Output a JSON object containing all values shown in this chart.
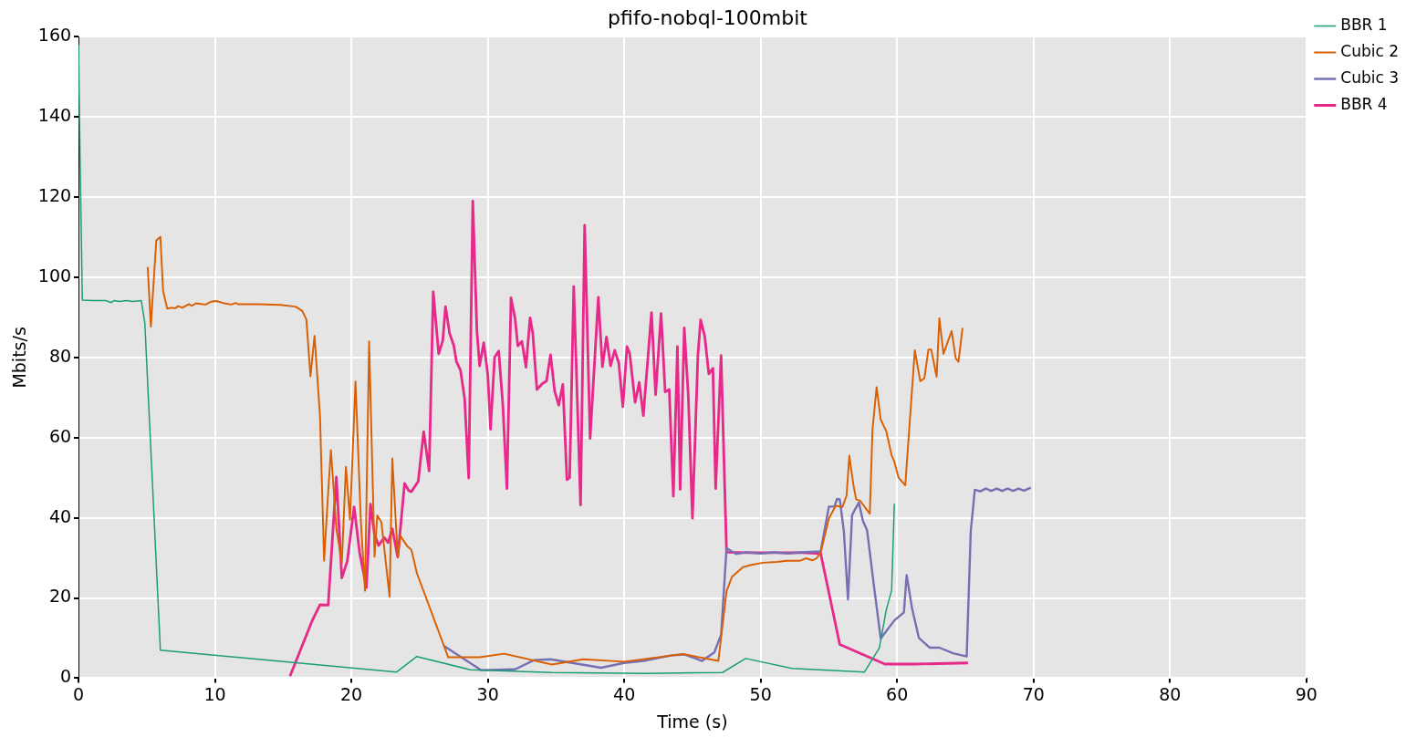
{
  "chart_data": {
    "type": "line",
    "title": "pfifo-nobql-100mbit",
    "xlabel": "Time (s)",
    "ylabel": "Mbits/s",
    "xlim": [
      0,
      90
    ],
    "ylim": [
      0,
      160
    ],
    "xticks": [
      0,
      10,
      20,
      30,
      40,
      50,
      60,
      70,
      80,
      90
    ],
    "yticks": [
      0,
      20,
      40,
      60,
      80,
      100,
      120,
      140,
      160
    ],
    "grid": true,
    "legend": "top right",
    "series": [
      {
        "name": "BBR 1",
        "color": "#1b9e77",
        "x": [
          0,
          0.09,
          0.28,
          1,
          2,
          2.4,
          2.6,
          3,
          3.5,
          4,
          4.6,
          4.86,
          6.0,
          23.3,
          24.8,
          28.7,
          34.7,
          41.6,
          47.2,
          48.9,
          52.3,
          57.6,
          58.7,
          59.2,
          59.6,
          59.8
        ],
        "values": [
          158,
          135,
          94.3,
          94.2,
          94.2,
          93.7,
          94.2,
          94,
          94.2,
          94,
          94.2,
          88.6,
          7,
          1.5,
          5.4,
          2.1,
          1.4,
          1.2,
          1.4,
          4.9,
          2.4,
          1.5,
          7.5,
          16.9,
          21.9,
          43.5
        ]
      },
      {
        "name": "Cubic 2",
        "color": "#d95f02",
        "x": [
          5.07,
          5.3,
          5.7,
          6.0,
          6.2,
          6.5,
          6.8,
          7.1,
          7.3,
          7.6,
          8.1,
          8.3,
          8.6,
          9.3,
          9.7,
          10.1,
          10.7,
          11.2,
          11.5,
          11.7,
          13.2,
          14.8,
          15.9,
          16.4,
          16.7,
          17.0,
          17.3,
          17.7,
          18.0,
          18.3,
          18.5,
          18.9,
          19.3,
          19.6,
          19.9,
          20.3,
          20.7,
          21.0,
          21.3,
          21.7,
          21.9,
          22.2,
          22.8,
          23.0,
          23.4,
          23.6,
          24.1,
          24.4,
          24.8,
          27.1,
          29.4,
          31.2,
          34.7,
          37.0,
          40.0,
          44.3,
          46.9,
          47.5,
          47.9,
          48.7,
          49.4,
          50.2,
          51.2,
          51.9,
          52.9,
          53.3,
          53.8,
          54.1,
          54.4,
          55.0,
          55.5,
          56.0,
          56.3,
          56.5,
          56.8,
          57.0,
          57.3,
          58.0,
          58.2,
          58.5,
          58.8,
          59.2,
          59.6,
          59.8,
          60.1,
          60.6,
          61.3,
          61.7,
          62.0,
          62.3,
          62.5,
          62.9,
          63.1,
          63.4,
          64.0,
          64.3,
          64.5,
          64.8
        ],
        "values": [
          102.6,
          87.7,
          109.2,
          110.1,
          96.6,
          92.2,
          92.4,
          92.3,
          92.8,
          92.4,
          93.3,
          92.9,
          93.5,
          93.2,
          93.9,
          94.1,
          93.5,
          93.2,
          93.6,
          93.3,
          93.3,
          93.1,
          92.7,
          91.6,
          89.5,
          75.3,
          85.4,
          65.4,
          29.3,
          46.5,
          56.9,
          37.3,
          28.8,
          52.7,
          39.5,
          74.0,
          38.8,
          21.8,
          84.0,
          30.3,
          40.6,
          38.9,
          20.3,
          54.8,
          30.2,
          35.5,
          32.9,
          32.0,
          26.2,
          5.2,
          5.2,
          6.1,
          3.4,
          4.7,
          4.1,
          6.0,
          4.3,
          21.7,
          25.3,
          27.7,
          28.3,
          28.8,
          29.0,
          29.3,
          29.3,
          29.9,
          29.4,
          29.9,
          31.3,
          39.8,
          43.0,
          42.7,
          45.6,
          55.5,
          48.2,
          44.6,
          44.2,
          41.0,
          62.1,
          72.6,
          64.5,
          61.7,
          55.6,
          54.0,
          50.1,
          48.1,
          81.8,
          74.1,
          74.8,
          82.0,
          82.0,
          75.2,
          89.8,
          80.9,
          86.6,
          79.8,
          78.9,
          87.4
        ]
      },
      {
        "name": "Cubic 3",
        "color": "#7570b3",
        "x": [
          26.8,
          29.5,
          32.0,
          33.4,
          34.6,
          38.3,
          40.0,
          41.4,
          43.5,
          44.4,
          45.7,
          46.6,
          47.1,
          47.5,
          48.2,
          49.0,
          50.0,
          51.0,
          52.0,
          53.0,
          54.4,
          55.0,
          55.4,
          55.6,
          55.8,
          56.1,
          56.4,
          56.7,
          56.9,
          57.2,
          57.5,
          57.8,
          58.3,
          58.8,
          59.8,
          60.5,
          60.7,
          61.1,
          61.6,
          62.4,
          63.1,
          64.1,
          65.1,
          65.4,
          65.7,
          66.1,
          66.5,
          66.9,
          67.3,
          67.7,
          68.1,
          68.5,
          68.9,
          69.3,
          69.8
        ],
        "values": [
          8.0,
          2.0,
          2.2,
          4.5,
          4.7,
          2.6,
          3.8,
          4.3,
          5.7,
          5.9,
          4.3,
          6.4,
          10.8,
          32.4,
          31.0,
          31.4,
          31.1,
          31.4,
          31.1,
          31.4,
          31.6,
          42.8,
          42.8,
          44.7,
          44.6,
          36.6,
          19.6,
          40.6,
          42.0,
          43.8,
          39.2,
          36.9,
          23.1,
          9.9,
          14.4,
          16.4,
          25.7,
          17.4,
          10.0,
          7.6,
          7.6,
          6.2,
          5.4,
          36.6,
          47.0,
          46.6,
          47.3,
          46.7,
          47.3,
          46.7,
          47.3,
          46.7,
          47.3,
          46.8,
          47.5
        ]
      },
      {
        "name": "BBR 4",
        "color": "#e7298a",
        "x": [
          15.5,
          17.1,
          17.7,
          18.3,
          18.9,
          19.3,
          19.7,
          20.2,
          20.6,
          21.1,
          21.4,
          21.7,
          22.0,
          22.4,
          22.7,
          23.0,
          23.4,
          23.9,
          24.2,
          24.4,
          24.9,
          25.3,
          25.7,
          26.0,
          26.4,
          26.7,
          26.9,
          27.2,
          27.5,
          27.7,
          28.0,
          28.3,
          28.6,
          28.9,
          29.2,
          29.4,
          29.7,
          30.0,
          30.2,
          30.5,
          30.8,
          31.1,
          31.4,
          31.7,
          32.0,
          32.2,
          32.5,
          32.8,
          33.1,
          33.3,
          33.6,
          34.0,
          34.3,
          34.6,
          34.9,
          35.2,
          35.5,
          35.8,
          36.0,
          36.3,
          36.8,
          37.1,
          37.5,
          38.1,
          38.4,
          38.7,
          39.0,
          39.3,
          39.6,
          39.9,
          40.2,
          40.4,
          40.8,
          41.1,
          41.4,
          42.0,
          42.3,
          42.7,
          43.0,
          43.3,
          43.6,
          43.9,
          44.1,
          44.4,
          44.7,
          45.0,
          45.4,
          45.6,
          45.9,
          46.2,
          46.5,
          46.7,
          47.1,
          47.5,
          49.0,
          51.0,
          53.0,
          54.4,
          55.8,
          59.1,
          61.3,
          65.2
        ],
        "values": [
          0.5,
          14.1,
          18.3,
          18.2,
          50.2,
          25.0,
          29.2,
          42.7,
          31.4,
          22.6,
          43.4,
          35.8,
          33.1,
          35.1,
          33.8,
          37.3,
          30.2,
          48.6,
          46.8,
          46.5,
          49.1,
          61.5,
          51.7,
          96.4,
          80.9,
          84.2,
          92.7,
          86.0,
          83.1,
          79.0,
          76.8,
          69.8,
          49.9,
          119,
          86.8,
          77.9,
          83.7,
          75.7,
          62.1,
          80.1,
          81.6,
          68.3,
          47.3,
          94.9,
          89.7,
          82.9,
          84.0,
          77.6,
          89.9,
          86.0,
          72.0,
          73.5,
          74.1,
          80.7,
          71.6,
          68.1,
          73.3,
          49.5,
          50.0,
          97.7,
          43.2,
          113,
          59.8,
          95.0,
          77.7,
          85.1,
          77.9,
          81.8,
          78.6,
          67.7,
          82.7,
          81.0,
          68.8,
          73.8,
          65.5,
          91.2,
          70.7,
          91.0,
          71.4,
          72.0,
          45.4,
          82.7,
          47.1,
          87.4,
          70.2,
          39.9,
          80.5,
          89.4,
          85.3,
          75.9,
          77.3,
          47.3,
          80.5,
          31.4,
          31.3,
          31.3,
          31.3,
          31.1,
          8.4,
          3.5,
          3.5,
          3.8
        ]
      }
    ]
  }
}
